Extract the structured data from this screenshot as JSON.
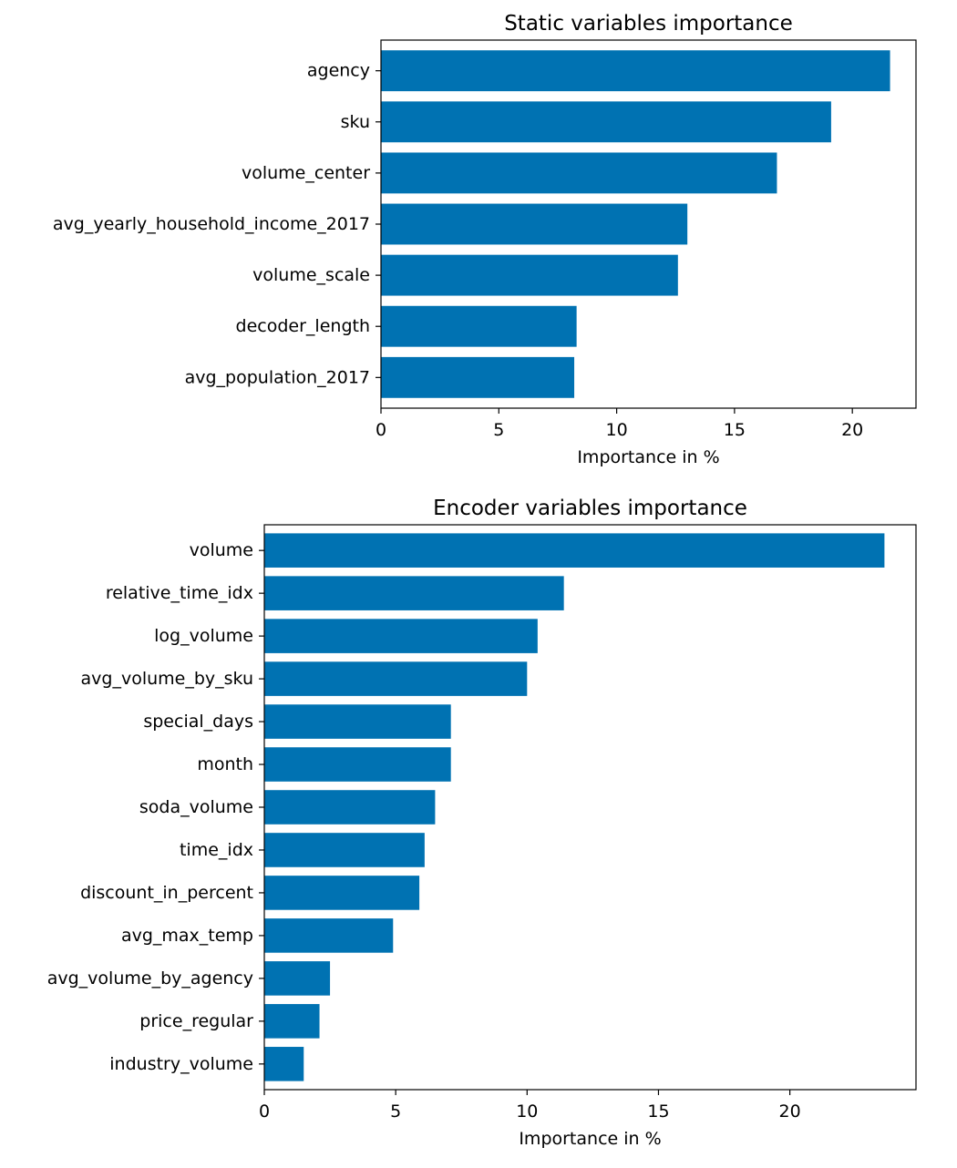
{
  "chart_data": [
    {
      "type": "bar",
      "orientation": "horizontal",
      "title": "Static variables importance",
      "xlabel": "Importance in %",
      "ylabel": "",
      "xlim": [
        0,
        22.7
      ],
      "xticks": [
        0,
        5,
        10,
        15,
        20
      ],
      "bar_color": "#0072b2",
      "categories": [
        "agency",
        "sku",
        "volume_center",
        "avg_yearly_household_income_2017",
        "volume_scale",
        "decoder_length",
        "avg_population_2017"
      ],
      "values": [
        21.6,
        19.1,
        16.8,
        13.0,
        12.6,
        8.3,
        8.2
      ]
    },
    {
      "type": "bar",
      "orientation": "horizontal",
      "title": "Encoder variables importance",
      "xlabel": "Importance in %",
      "ylabel": "",
      "xlim": [
        0,
        24.8
      ],
      "xticks": [
        0,
        5,
        10,
        15,
        20
      ],
      "bar_color": "#0072b2",
      "categories": [
        "volume",
        "relative_time_idx",
        "log_volume",
        "avg_volume_by_sku",
        "special_days",
        "month",
        "soda_volume",
        "time_idx",
        "discount_in_percent",
        "avg_max_temp",
        "avg_volume_by_agency",
        "price_regular",
        "industry_volume"
      ],
      "values": [
        23.6,
        11.4,
        10.4,
        10.0,
        7.1,
        7.1,
        6.5,
        6.1,
        5.9,
        4.9,
        2.5,
        2.1,
        1.5
      ]
    }
  ]
}
